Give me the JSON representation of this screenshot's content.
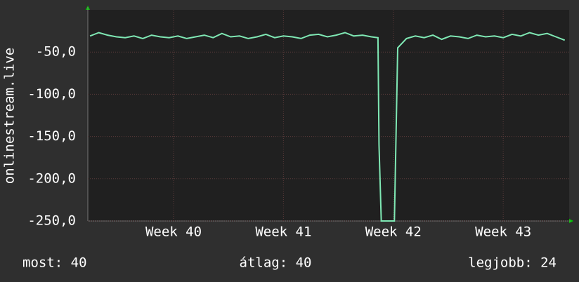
{
  "chart_data": {
    "type": "line",
    "y_label": "onlinestream.live",
    "x": [
      39.24,
      39.32,
      39.4,
      39.48,
      39.56,
      39.64,
      39.72,
      39.8,
      39.88,
      39.96,
      40.04,
      40.12,
      40.2,
      40.28,
      40.36,
      40.44,
      40.52,
      40.6,
      40.68,
      40.76,
      40.84,
      40.92,
      41.0,
      41.08,
      41.16,
      41.24,
      41.32,
      41.4,
      41.48,
      41.56,
      41.64,
      41.72,
      41.8,
      41.86,
      41.87,
      41.89,
      41.99,
      42.01,
      42.04,
      42.12,
      42.2,
      42.28,
      42.36,
      42.44,
      42.52,
      42.6,
      42.68,
      42.76,
      42.84,
      42.92,
      43.0,
      43.08,
      43.16,
      43.24,
      43.32,
      43.4,
      43.48,
      43.56
    ],
    "series": [
      {
        "color": "#7fe8b4",
        "values": [
          -31,
          -27,
          -30,
          -32,
          -33,
          -31,
          -34,
          -30,
          -32,
          -33,
          -31,
          -34,
          -32,
          -30,
          -33,
          -28,
          -32,
          -31,
          -34,
          -32,
          -29,
          -33,
          -31,
          -32,
          -34,
          -30,
          -29,
          -32,
          -30,
          -27,
          -31,
          -30,
          -32,
          -33,
          -160,
          -250,
          -250,
          -250,
          -45,
          -34,
          -31,
          -33,
          -30,
          -35,
          -31,
          -32,
          -34,
          -30,
          -32,
          -31,
          -33,
          -29,
          -31,
          -27,
          -30,
          -28,
          -32,
          -36
        ]
      }
    ],
    "xlim": [
      39.22,
      43.6
    ],
    "xticks": [
      {
        "value": 40,
        "label": "Week 40"
      },
      {
        "value": 41,
        "label": "Week 41"
      },
      {
        "value": 42,
        "label": "Week 42"
      },
      {
        "value": 43,
        "label": "Week 43"
      }
    ],
    "ylim": [
      -250,
      0
    ],
    "yticks": [
      {
        "value": -250,
        "label": "-250,0"
      },
      {
        "value": -200,
        "label": "-200,0"
      },
      {
        "value": -150,
        "label": "-150,0"
      },
      {
        "value": -100,
        "label": "-100,0"
      },
      {
        "value": -50,
        "label": "-50,0"
      }
    ],
    "grid": true,
    "stats": [
      "most: 40",
      "átlag: 40",
      "legjobb: 24"
    ]
  }
}
